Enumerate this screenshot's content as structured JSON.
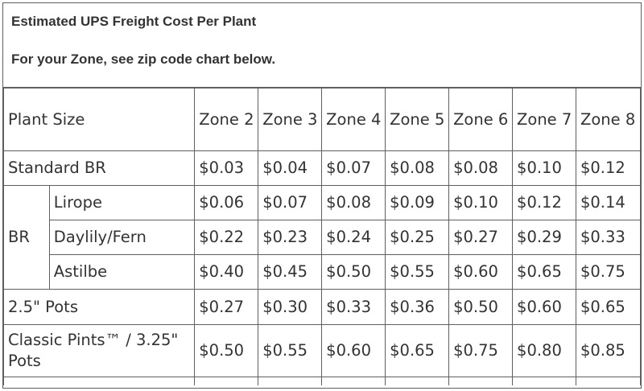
{
  "title": "Estimated UPS Freight Cost Per Plant",
  "subtitle": "For your Zone, see zip code chart below.",
  "table": {
    "corner_label": "Plant Size",
    "zones": [
      "Zone 2",
      "Zone 3",
      "Zone 4",
      "Zone 5",
      "Zone 6",
      "Zone 7",
      "Zone 8"
    ],
    "standard_br": {
      "label": "Standard BR",
      "values": [
        "$0.03",
        "$0.04",
        "$0.07",
        "$0.08",
        "$0.08",
        "$0.10",
        "$0.12"
      ]
    },
    "br_group": {
      "label": "BR",
      "rows": [
        {
          "label": "Lirope",
          "values": [
            "$0.06",
            "$0.07",
            "$0.08",
            "$0.09",
            "$0.10",
            "$0.12",
            "$0.14"
          ]
        },
        {
          "label": "Daylily/Fern",
          "values": [
            "$0.22",
            "$0.23",
            "$0.24",
            "$0.25",
            "$0.27",
            "$0.29",
            "$0.33"
          ]
        },
        {
          "label": "Astilbe",
          "values": [
            "$0.40",
            "$0.45",
            "$0.50",
            "$0.55",
            "$0.60",
            "$0.65",
            "$0.75"
          ]
        }
      ]
    },
    "pots_25": {
      "label": "2.5\" Pots",
      "values": [
        "$0.27",
        "$0.30",
        "$0.33",
        "$0.36",
        "$0.50",
        "$0.60",
        "$0.65"
      ]
    },
    "classic_pints": {
      "label": "Classic Pints™ / 3.25\" Pots",
      "values": [
        "$0.50",
        "$0.55",
        "$0.60",
        "$0.65",
        "$0.75",
        "$0.80",
        "$0.85"
      ]
    }
  }
}
